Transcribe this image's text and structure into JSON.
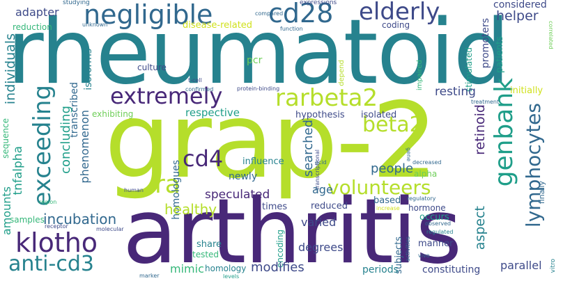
{
  "colors": {
    "background": "#ffffff",
    "purple": "#482878",
    "violet": "#3e4a89",
    "blue": "#31688e",
    "teal": "#26828e",
    "green": "#1f9e89",
    "lightgreen": "#35b779",
    "lime": "#6ece58",
    "yellow": "#b5de2b",
    "yellowgreen": "#d0e11c"
  },
  "words": [
    "rheumatoid",
    "grap-2",
    "arthritis",
    "negligible",
    "cd28",
    "elderly",
    "extremely",
    "rarbeta2",
    "beta2",
    "klotho",
    "anti-cd3",
    "genbank",
    "lymphocytes",
    "volunteers",
    "exceeding",
    "cd4",
    "ra",
    "individuals",
    "adapter",
    "helper",
    "considered",
    "studying",
    "expressions",
    "compared",
    "unknown",
    "reduction",
    "disease-related",
    "function",
    "coding",
    "promoters",
    "patients",
    "correlated",
    "transcribed",
    "isoforms",
    "pcr",
    "culture",
    "impaired",
    "stimulated",
    "resting",
    "initially",
    "t-cell",
    "confirmed",
    "protein-binding",
    "treatment",
    "sequence",
    "exhibiting",
    "respective",
    "hypothesis",
    "isolated",
    "retinoid",
    "depend",
    "tnfalpha",
    "concluding",
    "phenomenon",
    "homologues",
    "searched",
    "people",
    "influence",
    "acid",
    "gene",
    "decreased",
    "alpha",
    "transcriptional",
    "newly",
    "speculated",
    "age",
    "based",
    "regulatory",
    "finally",
    "human",
    "region",
    "times",
    "reduced",
    "hormone",
    "increase",
    "healthy",
    "incubation",
    "amounts",
    "samples",
    "varied",
    "occurs",
    "receptor",
    "molecular",
    "observed",
    "regulated",
    "share",
    "tested",
    "degrees",
    "manner",
    "aspect",
    "mimic",
    "homology",
    "encoding",
    "subjects",
    "activities",
    "vivo",
    "constituting",
    "parallel",
    "modifies",
    "periods",
    "marker",
    "levels",
    "vitro"
  ]
}
